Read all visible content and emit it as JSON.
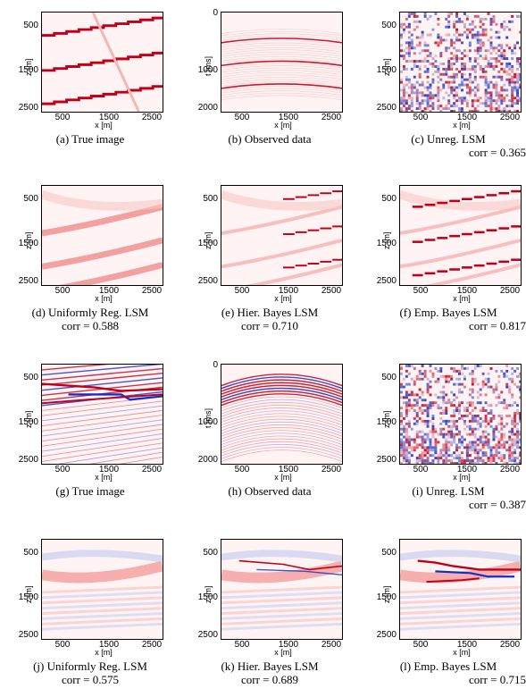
{
  "colors": {
    "red": "#c0001a",
    "blue": "#1030c8",
    "paleRed": "#f6b5b5",
    "paleBlue": "#c0c8f0",
    "bg": "#fff3f3"
  },
  "panels": [
    {
      "id": "a",
      "caption": "(a) True image",
      "corr": "",
      "ylabel": "z [m]",
      "xlabel": "x [m]",
      "yticks": [
        "500",
        "1500",
        "2500"
      ],
      "xticks": [
        "500",
        "1500",
        "2500"
      ],
      "kind": "true1"
    },
    {
      "id": "b",
      "caption": "(b) Observed data",
      "corr": "",
      "ylabel": "t [ms]",
      "xlabel": "x [m]",
      "yticks": [
        "0",
        "1000",
        "2000"
      ],
      "xticks": [
        "500",
        "1500",
        "2500"
      ],
      "kind": "data1"
    },
    {
      "id": "c",
      "caption": "(c) Unreg. LSM",
      "corr": "corr = 0.365",
      "ylabel": "z [m]",
      "xlabel": "x [m]",
      "yticks": [
        "500",
        "1500",
        "2500"
      ],
      "xticks": [
        "500",
        "1500",
        "2500"
      ],
      "kind": "noise1"
    },
    {
      "id": "d",
      "caption": "(d) Uniformly Reg. LSM",
      "corr": "corr = 0.588",
      "ylabel": "z [m]",
      "xlabel": "x [m]",
      "yticks": [
        "500",
        "1500",
        "2500"
      ],
      "xticks": [
        "500",
        "1500",
        "2500"
      ],
      "kind": "smooth1"
    },
    {
      "id": "e",
      "caption": "(e) Hier. Bayes LSM",
      "corr": "corr = 0.710",
      "ylabel": "z [m]",
      "xlabel": "x [m]",
      "yticks": [
        "500",
        "1500",
        "2500"
      ],
      "xticks": [
        "500",
        "1500",
        "2500"
      ],
      "kind": "hier1"
    },
    {
      "id": "f",
      "caption": "(f) Emp. Bayes LSM",
      "corr": "corr = 0.817",
      "ylabel": "z [m]",
      "xlabel": "x [m]",
      "yticks": [
        "500",
        "1500",
        "2500"
      ],
      "xticks": [
        "500",
        "1500",
        "2500"
      ],
      "kind": "emp1"
    },
    {
      "id": "g",
      "caption": "(g) True image",
      "corr": "",
      "ylabel": "z [m]",
      "xlabel": "x [m]",
      "yticks": [
        "500",
        "1500",
        "2500"
      ],
      "xticks": [
        "500",
        "1500",
        "2500"
      ],
      "kind": "true2"
    },
    {
      "id": "h",
      "caption": "(h) Observed data",
      "corr": "",
      "ylabel": "t [ms]",
      "xlabel": "x [m]",
      "yticks": [
        "0",
        "1000",
        "2000"
      ],
      "xticks": [
        "500",
        "1500",
        "2500"
      ],
      "kind": "data2"
    },
    {
      "id": "i",
      "caption": "(i) Unreg. LSM",
      "corr": "corr = 0.387",
      "ylabel": "z [m]",
      "xlabel": "x [m]",
      "yticks": [
        "500",
        "1500",
        "2500"
      ],
      "xticks": [
        "500",
        "1500",
        "2500"
      ],
      "kind": "noise2"
    },
    {
      "id": "j",
      "caption": "(j) Uniformly Reg. LSM",
      "corr": "corr = 0.575",
      "ylabel": "z [m]",
      "xlabel": "x [m]",
      "yticks": [
        "500",
        "1500",
        "2500"
      ],
      "xticks": [
        "500",
        "1500",
        "2500"
      ],
      "kind": "smooth2"
    },
    {
      "id": "k",
      "caption": "(k) Hier. Bayes LSM",
      "corr": "corr = 0.689",
      "ylabel": "z [m]",
      "xlabel": "x [m]",
      "yticks": [
        "500",
        "1500",
        "2500"
      ],
      "xticks": [
        "500",
        "1500",
        "2500"
      ],
      "kind": "hier2"
    },
    {
      "id": "l",
      "caption": "(l) Emp. Bayes LSM",
      "corr": "corr = 0.715",
      "ylabel": "z [m]",
      "xlabel": "x [m]",
      "yticks": [
        "500",
        "1500",
        "2500"
      ],
      "xticks": [
        "500",
        "1500",
        "2500"
      ],
      "kind": "emp2"
    }
  ]
}
